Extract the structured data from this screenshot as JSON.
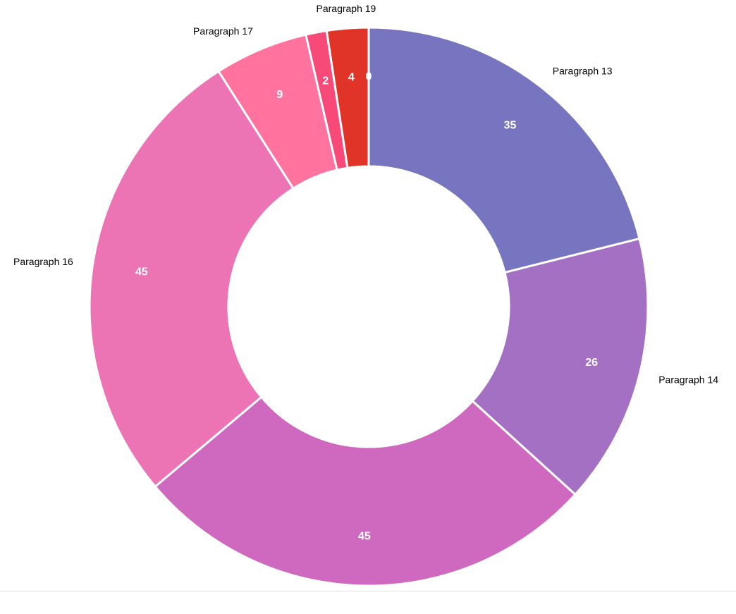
{
  "chart_data": {
    "type": "pie",
    "variant": "donut",
    "slices": [
      {
        "label": "Paragraph 13",
        "value": 35,
        "value_label": "35",
        "color": "#7875C0"
      },
      {
        "label": "Paragraph 14",
        "value": 26,
        "value_label": "26",
        "color": "#A470C4"
      },
      {
        "label": "",
        "value": 45,
        "value_label": "45",
        "color": "#CE69BF"
      },
      {
        "label": "Paragraph 16",
        "value": 45,
        "value_label": "45",
        "color": "#EC74B5"
      },
      {
        "label": "Paragraph 17",
        "value": 9,
        "value_label": "9",
        "color": "#FF739E"
      },
      {
        "label": "",
        "value": 2,
        "value_label": "2",
        "color": "#F74A79"
      },
      {
        "label": "Paragraph 19",
        "value": 4,
        "value_label": "4",
        "color": "#E03428"
      },
      {
        "label": "",
        "value": 0,
        "value_label": "0",
        "color": "#D32F2F"
      }
    ],
    "start_angle": "top",
    "direction": "clockwise",
    "legend": "none",
    "data_labels": "inside"
  }
}
